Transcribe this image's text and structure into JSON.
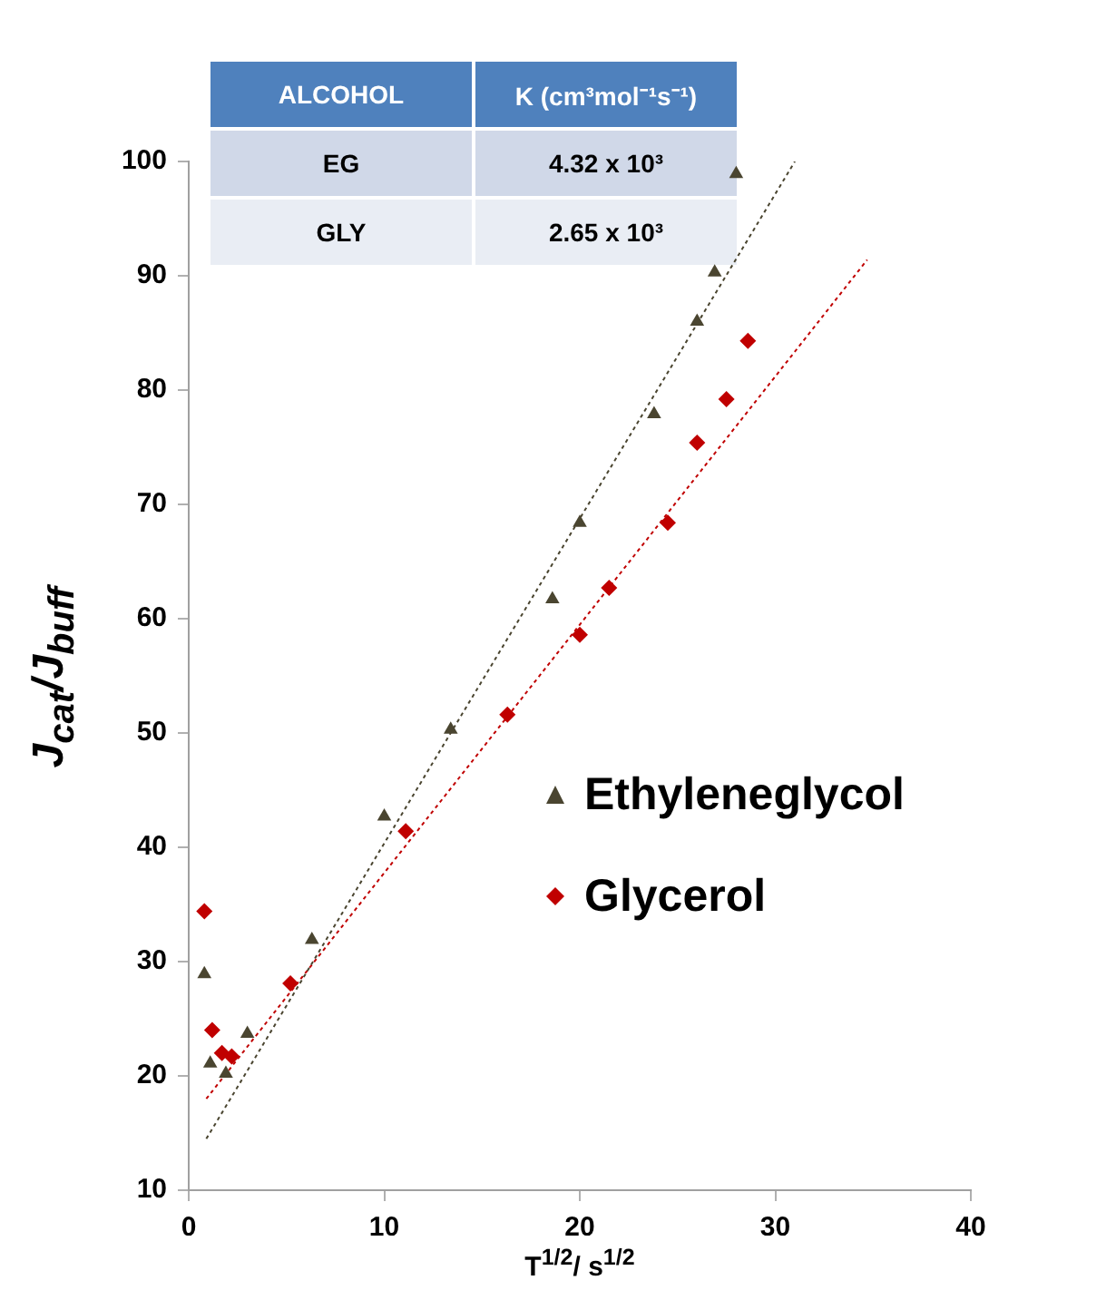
{
  "chart_data": {
    "type": "scatter",
    "xlabel": "T$^{1/2}$/ s$^{1/2}$",
    "ylabel": "J$_{cat}$/J$_{buff}$",
    "annotations": [
      "ALCOHOL",
      "K (cm³mol⁻¹s⁻¹)",
      "EG",
      "4.32 x 10³",
      "GLY",
      "2.65 x 10³"
    ],
    "xlim": [
      0,
      40
    ],
    "xticks": [
      0,
      10,
      20,
      30,
      40
    ],
    "ylim": [
      10,
      100
    ],
    "yticks": [
      10,
      20,
      30,
      40,
      50,
      60,
      70,
      80,
      90,
      100
    ],
    "grid": false,
    "legend": "right",
    "series": [
      {
        "name": "Ethyleneglycol",
        "color": "#4a4530",
        "marker": "triangle",
        "x": [
          0.8,
          1.1,
          1.9,
          3,
          6.3,
          10,
          13.4,
          18.6,
          20,
          23.8,
          26,
          26.9,
          28
        ],
        "values": [
          28.9,
          21.1,
          20.2,
          23.7,
          31.9,
          42.7,
          50.3,
          61.7,
          68.4,
          77.9,
          86,
          90.3,
          98.9
        ]
      },
      {
        "name": "Glycerol",
        "color": "#c00000",
        "marker": "diamond",
        "x": [
          0.8,
          1.2,
          1.7,
          2.2,
          5.2,
          11.1,
          16.3,
          20,
          21.5,
          24.5,
          26,
          27.5,
          28.6
        ],
        "values": [
          34.4,
          24,
          22,
          21.7,
          28.1,
          41.4,
          51.6,
          58.6,
          62.7,
          68.4,
          75.4,
          79.2,
          84.3
        ]
      },
      {
        "type": "line",
        "color": "#4a4530",
        "line_style": "dotted",
        "x": [
          0.9,
          31
        ],
        "values": [
          14.5,
          100
        ]
      },
      {
        "type": "line",
        "color": "#c00000",
        "line_style": "dotted",
        "x": [
          0.9,
          34.7
        ],
        "values": [
          18,
          91.4
        ]
      }
    ]
  }
}
